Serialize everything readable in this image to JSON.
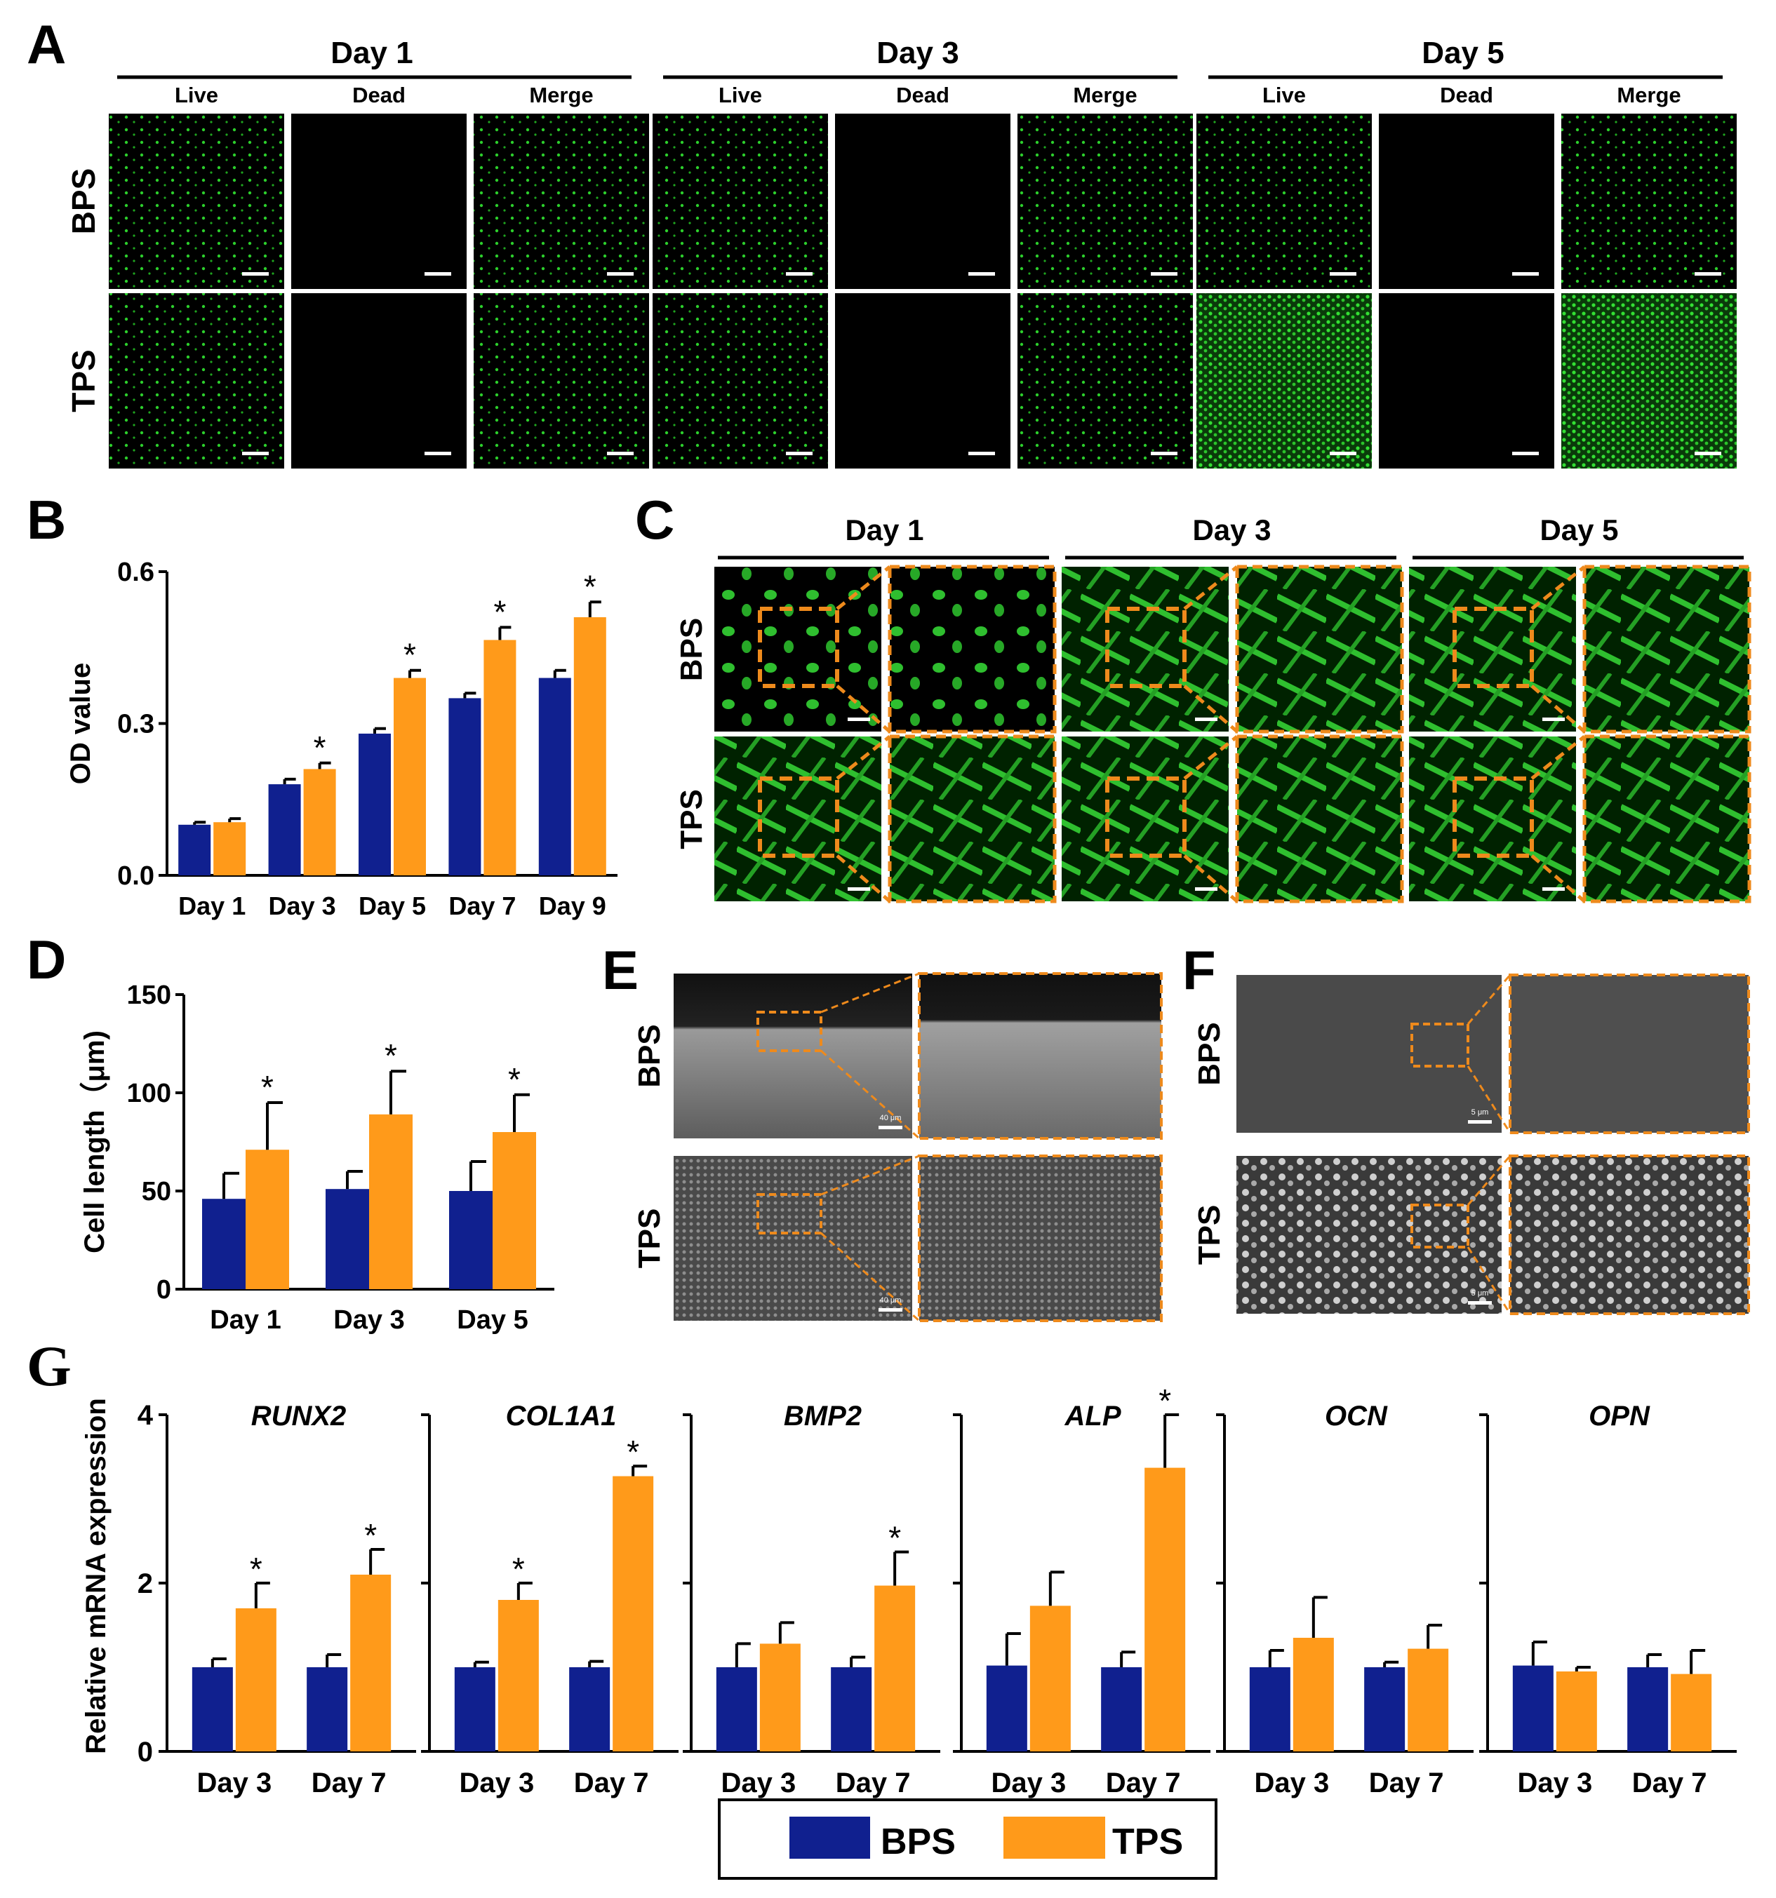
{
  "colors": {
    "bps": "#10208f",
    "tps": "#ff9a1a",
    "green": "#2ccf2c",
    "dashed": "#ee8a1c",
    "axis": "#000000"
  },
  "panels": {
    "a": "A",
    "b": "B",
    "c": "C",
    "d": "D",
    "e": "E",
    "f": "F",
    "g": "G"
  },
  "panelA": {
    "days": [
      "Day 1",
      "Day 3",
      "Day 5"
    ],
    "cols": [
      "Live",
      "Dead",
      "Merge"
    ],
    "rows": [
      "BPS",
      "TPS"
    ]
  },
  "panelC": {
    "days": [
      "Day 1",
      "Day 3",
      "Day 5"
    ],
    "rows": [
      "BPS",
      "TPS"
    ]
  },
  "panelE": {
    "rows": [
      "BPS",
      "TPS"
    ],
    "scale": "40 μm"
  },
  "panelF": {
    "rows": [
      "BPS",
      "TPS"
    ],
    "scale": "5 μm"
  },
  "legend": {
    "bps": "BPS",
    "tps": "TPS"
  },
  "chart_data": [
    {
      "id": "B",
      "type": "bar",
      "ylabel": "OD value",
      "ylim": [
        0,
        0.6
      ],
      "yticks": [
        "0.0",
        "0.3",
        "0.6"
      ],
      "categories": [
        "Day 1",
        "Day 3",
        "Day 5",
        "Day 7",
        "Day 9"
      ],
      "series": [
        {
          "name": "BPS",
          "values": [
            0.1,
            0.18,
            0.28,
            0.35,
            0.39
          ],
          "errors": [
            0.005,
            0.01,
            0.01,
            0.01,
            0.015
          ]
        },
        {
          "name": "TPS",
          "values": [
            0.105,
            0.21,
            0.39,
            0.465,
            0.51
          ],
          "errors": [
            0.007,
            0.012,
            0.015,
            0.025,
            0.03
          ]
        }
      ],
      "significant": [
        false,
        true,
        true,
        true,
        true
      ],
      "marker": "*"
    },
    {
      "id": "D",
      "type": "bar",
      "ylabel": "Cell length（μm)",
      "ylim": [
        0,
        150
      ],
      "yticks": [
        "0",
        "50",
        "100",
        "150"
      ],
      "categories": [
        "Day 1",
        "Day 3",
        "Day 5"
      ],
      "series": [
        {
          "name": "BPS",
          "values": [
            46,
            51,
            50
          ],
          "errors": [
            13,
            9,
            15
          ]
        },
        {
          "name": "TPS",
          "values": [
            71,
            89,
            80
          ],
          "errors": [
            24,
            22,
            19
          ]
        }
      ],
      "significant": [
        true,
        true,
        true
      ],
      "marker": "*"
    },
    {
      "id": "G",
      "type": "bar",
      "ylabel": "Relative mRNA expression",
      "ylim": [
        0,
        4
      ],
      "yticks": [
        "0",
        "2",
        "4"
      ],
      "categories": [
        "Day 3",
        "Day 7"
      ],
      "groups": [
        {
          "gene": "RUNX2",
          "bps": [
            1.0,
            1.0
          ],
          "bps_err": [
            0.1,
            0.15
          ],
          "tps": [
            1.7,
            2.1
          ],
          "tps_err": [
            0.3,
            0.3
          ],
          "sig": [
            true,
            true
          ]
        },
        {
          "gene": "COL1A1",
          "bps": [
            1.0,
            1.0
          ],
          "bps_err": [
            0.06,
            0.07
          ],
          "tps": [
            1.8,
            3.27
          ],
          "tps_err": [
            0.2,
            0.12
          ],
          "sig": [
            true,
            true
          ]
        },
        {
          "gene": "BMP2",
          "bps": [
            1.0,
            1.0
          ],
          "bps_err": [
            0.28,
            0.12
          ],
          "tps": [
            1.28,
            1.97
          ],
          "tps_err": [
            0.25,
            0.4
          ],
          "sig": [
            false,
            true
          ]
        },
        {
          "gene": "ALP",
          "bps": [
            1.02,
            1.0
          ],
          "bps_err": [
            0.38,
            0.18
          ],
          "tps": [
            1.73,
            3.37
          ],
          "tps_err": [
            0.4,
            0.63
          ],
          "sig": [
            false,
            true
          ]
        },
        {
          "gene": "OCN",
          "bps": [
            1.0,
            1.0
          ],
          "bps_err": [
            0.2,
            0.06
          ],
          "tps": [
            1.35,
            1.22
          ],
          "tps_err": [
            0.48,
            0.28
          ],
          "sig": [
            false,
            false
          ]
        },
        {
          "gene": "OPN",
          "bps": [
            1.02,
            1.0
          ],
          "bps_err": [
            0.28,
            0.15
          ],
          "tps": [
            0.95,
            0.92
          ],
          "tps_err": [
            0.05,
            0.28
          ],
          "sig": [
            false,
            false
          ]
        }
      ],
      "marker": "*"
    }
  ]
}
